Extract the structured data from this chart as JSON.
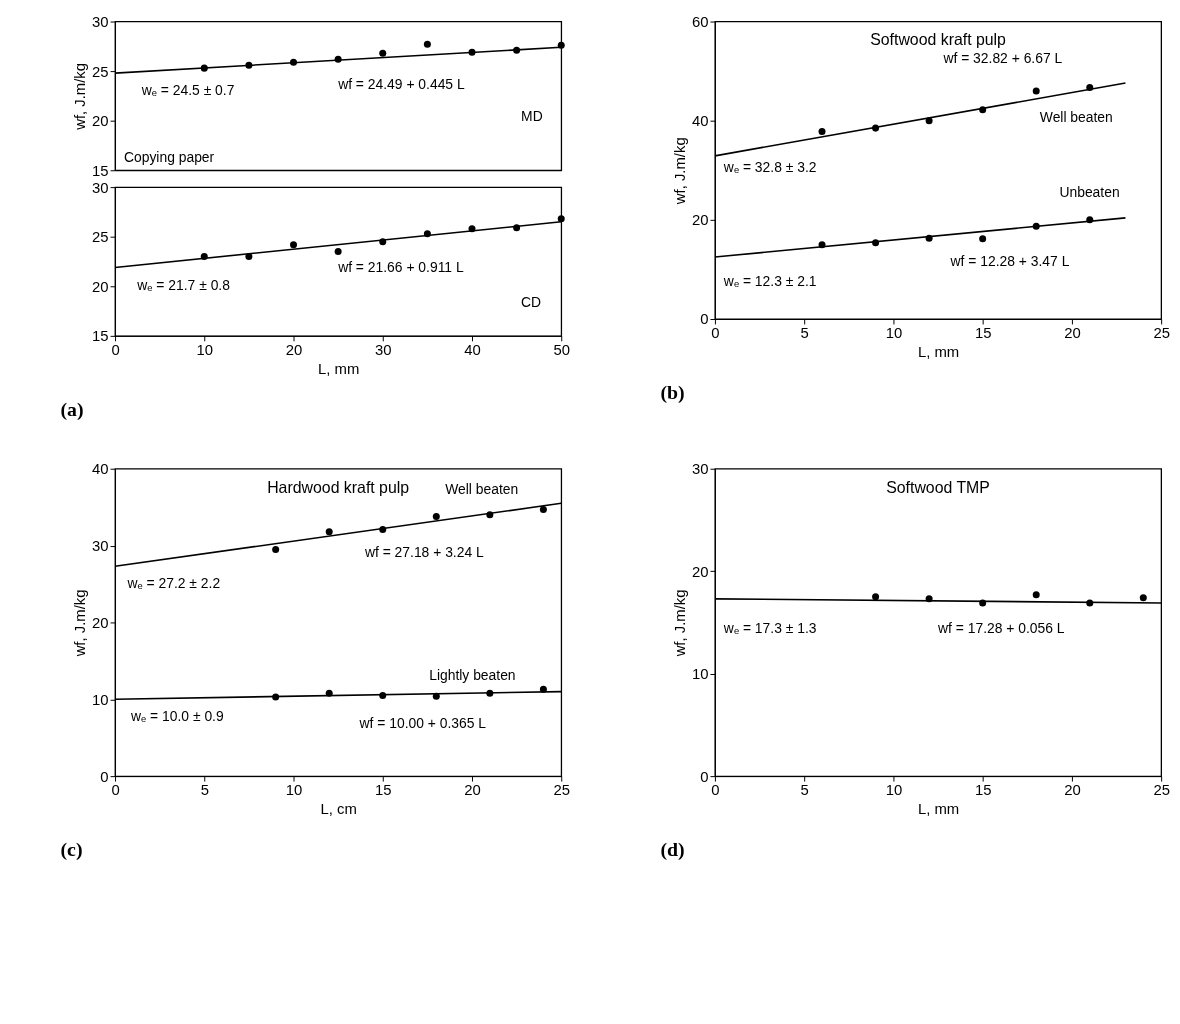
{
  "chart_data": [
    {
      "type": "scatter",
      "ylabel": "wf, J.m/kg",
      "xlim": [
        0,
        50
      ],
      "xticks": [
        0,
        10,
        20,
        30,
        40,
        50
      ],
      "ylim": [
        15,
        30
      ],
      "yticks": [
        15,
        20,
        25,
        30
      ],
      "tick_labels": "y",
      "series": [
        {
          "color": "#000000",
          "marker": "circle",
          "x": [
            10,
            15,
            20,
            25,
            30,
            35,
            40,
            45,
            50
          ],
          "values": [
            25.3,
            25.6,
            25.9,
            26.2,
            26.8,
            27.7,
            26.9,
            27.1,
            27.6
          ]
        },
        {
          "type": "line",
          "color": "#000000",
          "x": [
            0,
            50
          ],
          "values": [
            24.8,
            27.4
          ]
        }
      ],
      "annotations": [
        "wₑ = 24.5 ± 0.7",
        "wf = 24.49 + 0.445 L",
        "MD",
        "Copying paper"
      ]
    },
    {
      "type": "scatter",
      "xlabel": "L, mm",
      "xlim": [
        0,
        50
      ],
      "xticks": [
        0,
        10,
        20,
        30,
        40,
        50
      ],
      "ylim": [
        15,
        30
      ],
      "yticks": [
        15,
        20,
        25,
        30
      ],
      "series": [
        {
          "color": "#000000",
          "marker": "circle",
          "x": [
            10,
            15,
            20,
            25,
            30,
            35,
            40,
            45,
            50
          ],
          "values": [
            23.0,
            23.0,
            24.2,
            23.5,
            24.5,
            25.3,
            25.8,
            25.9,
            26.8
          ]
        },
        {
          "type": "line",
          "color": "#000000",
          "x": [
            0,
            50
          ],
          "values": [
            21.9,
            26.5
          ]
        }
      ],
      "annotations": [
        "wf = 21.66 + 0.911 L",
        "wₑ = 21.7 ± 0.8",
        "CD",
        "(a)"
      ]
    },
    {
      "type": "scatter",
      "title": "Softwood kraft pulp",
      "xlabel": "L, mm",
      "ylabel": "wf, J.m/kg",
      "xlim": [
        0,
        25
      ],
      "xticks": [
        0,
        5,
        10,
        15,
        20,
        25
      ],
      "ylim": [
        0,
        60
      ],
      "yticks": [
        0,
        20,
        40,
        60
      ],
      "series": [
        {
          "color": "#000000",
          "marker": "circle",
          "x": [
            6,
            9,
            12,
            15,
            18,
            21
          ],
          "values": [
            37.8,
            38.5,
            40.0,
            42.2,
            46.0,
            46.7
          ]
        },
        {
          "type": "line",
          "color": "#000000",
          "x": [
            0,
            23
          ],
          "values": [
            32.9,
            47.6
          ]
        },
        {
          "color": "#000000",
          "marker": "circle",
          "x": [
            6,
            9,
            12,
            15,
            18,
            21
          ],
          "values": [
            15.0,
            15.4,
            16.3,
            16.2,
            18.7,
            20.0
          ]
        },
        {
          "type": "line",
          "color": "#000000",
          "x": [
            0,
            23
          ],
          "values": [
            12.5,
            20.4
          ]
        }
      ],
      "annotations": [
        "wf = 32.82 + 6.67 L",
        "Well beaten",
        "wₑ = 32.8 ± 3.2",
        "Unbeaten",
        "wf = 12.28 + 3.47 L",
        "wₑ = 12.3 ± 2.1",
        "(b)"
      ]
    },
    {
      "type": "scatter",
      "title": "Hardwood kraft pulp",
      "xlabel": "L, cm",
      "ylabel": "wf, J.m/kg",
      "xlim": [
        0,
        25
      ],
      "xticks": [
        0,
        5,
        10,
        15,
        20,
        25
      ],
      "ylim": [
        0,
        40
      ],
      "yticks": [
        0,
        10,
        20,
        30,
        40
      ],
      "series": [
        {
          "color": "#000000",
          "marker": "circle",
          "x": [
            9,
            12,
            15,
            18,
            21,
            24
          ],
          "values": [
            29.5,
            31.8,
            32.1,
            33.8,
            34.0,
            34.7
          ]
        },
        {
          "type": "line",
          "color": "#000000",
          "x": [
            0,
            25
          ],
          "values": [
            27.3,
            35.5
          ]
        },
        {
          "color": "#000000",
          "marker": "circle",
          "x": [
            9,
            12,
            15,
            18,
            21,
            24
          ],
          "values": [
            10.3,
            10.8,
            10.5,
            10.4,
            10.8,
            11.3
          ]
        },
        {
          "type": "line",
          "color": "#000000",
          "x": [
            0,
            25
          ],
          "values": [
            10.0,
            11.0
          ]
        }
      ],
      "annotations": [
        "Well beaten",
        "wf = 27.18 + 3.24 L",
        "wₑ = 27.2 ± 2.2",
        "Lightly beaten",
        "wₑ = 10.0 ± 0.9",
        "wf = 10.00 + 0.365 L",
        "(c)"
      ]
    },
    {
      "type": "scatter",
      "title": "Softwood TMP",
      "xlabel": "L, mm",
      "ylabel": "wf, J.m/kg",
      "xlim": [
        0,
        25
      ],
      "xticks": [
        0,
        5,
        10,
        15,
        20,
        25
      ],
      "ylim": [
        0,
        30
      ],
      "yticks": [
        0,
        10,
        20,
        30
      ],
      "series": [
        {
          "color": "#000000",
          "marker": "circle",
          "x": [
            9,
            12,
            15,
            18,
            21,
            24
          ],
          "values": [
            17.5,
            17.3,
            16.9,
            17.7,
            16.9,
            17.4
          ]
        },
        {
          "type": "line",
          "color": "#000000",
          "x": [
            0,
            25
          ],
          "values": [
            17.3,
            16.9
          ]
        }
      ],
      "annotations": [
        "wₑ = 17.3 ± 1.3",
        "wf = 17.28 + 0.056 L",
        "(d)"
      ]
    }
  ]
}
